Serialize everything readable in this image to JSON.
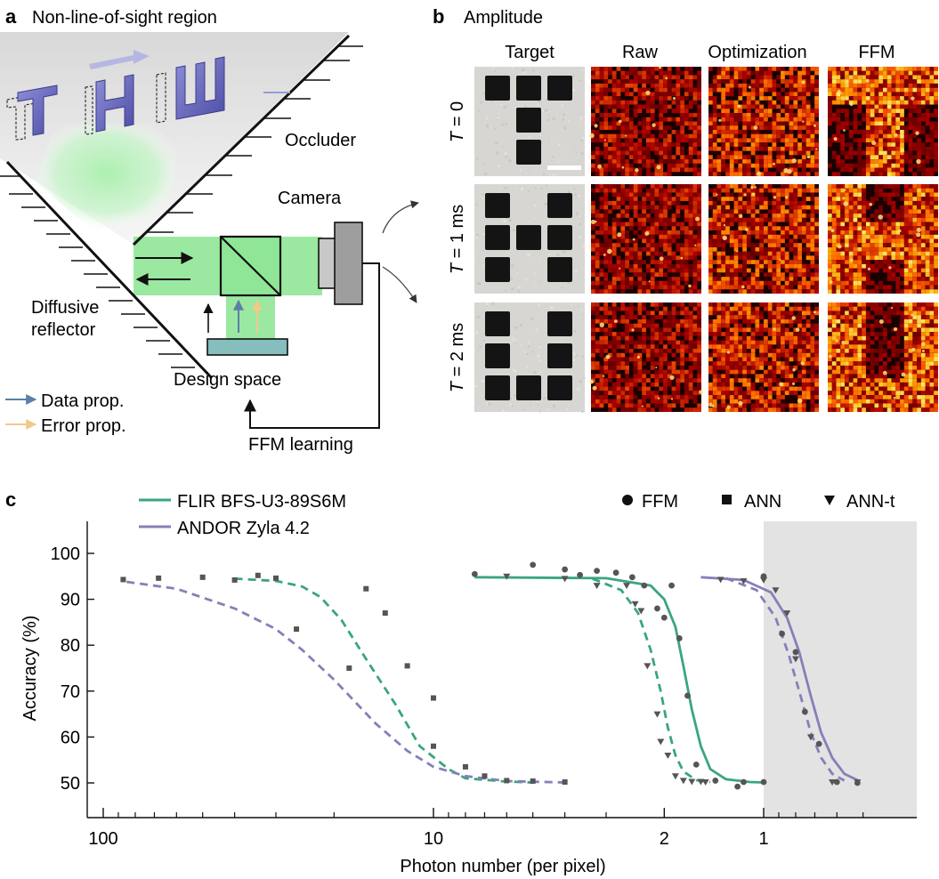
{
  "panel_a": {
    "letter": "a",
    "title": "Non-line-of-sight region",
    "target_text": "THU",
    "labels": {
      "occluder": "Occluder",
      "camera": "Camera",
      "diffusive_1": "Diffusive",
      "diffusive_2": "reflector",
      "design_space": "Design space",
      "ffm_learning": "FFM learning"
    },
    "legend": [
      {
        "label": "Data prop.",
        "color": "#5b7fa8"
      },
      {
        "label": "Error prop.",
        "color": "#f3c98b"
      }
    ],
    "colors": {
      "beam": "#8de394",
      "letters": "#6f6fc2",
      "design": "#86bdbd"
    }
  },
  "panel_b": {
    "letter": "b",
    "title": "Amplitude",
    "columns": [
      "Target",
      "Raw",
      "Optimization",
      "FFM"
    ],
    "rows": [
      {
        "prefix": "T",
        "rest": " = 0"
      },
      {
        "prefix": "T",
        "rest": " = 1 ms"
      },
      {
        "prefix": "T",
        "rest": " = 2 ms"
      }
    ],
    "target_patterns": [
      [
        [
          1,
          1,
          1
        ],
        [
          0,
          1,
          0
        ],
        [
          0,
          1,
          0
        ]
      ],
      [
        [
          1,
          0,
          1
        ],
        [
          1,
          1,
          1
        ],
        [
          1,
          0,
          1
        ]
      ],
      [
        [
          1,
          0,
          1
        ],
        [
          1,
          0,
          1
        ],
        [
          1,
          1,
          1
        ]
      ]
    ]
  },
  "panel_c": {
    "letter": "c",
    "legend_cameras": [
      {
        "name": "FLIR BFS-U3-89S6M",
        "color": "#3aa57f"
      },
      {
        "name": "ANDOR Zyla 4.2",
        "color": "#8580b8"
      }
    ],
    "legend_models": [
      {
        "symbol": "circle",
        "label": "FFM"
      },
      {
        "symbol": "square",
        "label": "ANN"
      },
      {
        "symbol": "triangle",
        "label": "ANN-t"
      }
    ]
  },
  "chart_data": {
    "type": "scatter",
    "xlabel": "Photon number (per pixel)",
    "ylabel": "Accuracy (%)",
    "x_scale": "log-reversed",
    "xlim": [
      100,
      0.4
    ],
    "ylim": [
      46,
      107
    ],
    "x_ticks": [
      {
        "value": 100,
        "label": "100"
      },
      {
        "value": 10,
        "label": "10"
      },
      {
        "value": 2,
        "label": "2"
      },
      {
        "value": 1,
        "label": "1"
      }
    ],
    "y_ticks": [
      {
        "value": 50,
        "label": "50"
      },
      {
        "value": 60,
        "label": "60"
      },
      {
        "value": 70,
        "label": "70"
      },
      {
        "value": 80,
        "label": "80"
      },
      {
        "value": 90,
        "label": "90"
      },
      {
        "value": 100,
        "label": "100"
      }
    ],
    "shaded_region": {
      "x_from": 1,
      "x_to": 0.4,
      "color": "#e3e3e3"
    },
    "fits": [
      {
        "model": "ANN",
        "camera": "FLIR BFS-U3-89S6M",
        "style": "dashed",
        "color": "#3aa57f",
        "x": [
          40,
          30,
          25,
          22,
          19,
          16,
          13,
          11,
          9,
          8,
          6,
          5
        ],
        "y": [
          94.5,
          94.0,
          92.8,
          90.5,
          85.5,
          77,
          67,
          58,
          53,
          51,
          50.3,
          50.1
        ]
      },
      {
        "model": "ANN",
        "camera": "ANDOR Zyla 4.2",
        "style": "dashed",
        "color": "#8580b8",
        "x": [
          85,
          60,
          40,
          30,
          25,
          20,
          15,
          12,
          10,
          8,
          6,
          4
        ],
        "y": [
          93.8,
          92.3,
          88,
          83.5,
          79,
          72.5,
          63,
          57,
          53.5,
          51.5,
          50.4,
          50.1
        ]
      },
      {
        "model": "FFM",
        "camera": "FLIR BFS-U3-89S6M",
        "style": "solid",
        "color": "#3aa57f",
        "x": [
          7.5,
          3,
          2.2,
          2.0,
          1.85,
          1.75,
          1.65,
          1.55,
          1.45,
          1.3,
          1.1,
          1.0
        ],
        "y": [
          94.8,
          94.6,
          93,
          90,
          84,
          75.5,
          66,
          58,
          53,
          50.8,
          50.2,
          50.1
        ]
      },
      {
        "model": "ANN-t",
        "camera": "FLIR BFS-U3-89S6M",
        "style": "dashed",
        "color": "#3aa57f",
        "x": [
          3.3,
          2.7,
          2.4,
          2.2,
          2.05,
          1.95,
          1.85,
          1.75,
          1.6,
          1.45
        ],
        "y": [
          94.5,
          92,
          87,
          79,
          70,
          62,
          56,
          52.5,
          50.6,
          50.2
        ]
      },
      {
        "model": "FFM",
        "camera": "ANDOR Zyla 4.2",
        "style": "solid",
        "color": "#8580b8",
        "x": [
          1.55,
          1.15,
          0.95,
          0.85,
          0.78,
          0.72,
          0.67,
          0.62,
          0.57,
          0.52
        ],
        "y": [
          94.8,
          94.2,
          91.5,
          86,
          78.5,
          69,
          61,
          55.5,
          52,
          50.6
        ]
      },
      {
        "model": "ANN-t",
        "camera": "ANDOR Zyla 4.2",
        "style": "dashed",
        "color": "#8580b8",
        "x": [
          1.3,
          1.05,
          0.92,
          0.84,
          0.77,
          0.72,
          0.67,
          0.62,
          0.57
        ],
        "y": [
          94.6,
          92,
          86,
          78,
          68.5,
          61,
          55.5,
          52,
          50.5
        ]
      }
    ],
    "points": [
      {
        "model": "ANN",
        "symbol": "square",
        "x": [
          87,
          68,
          50,
          40,
          34,
          30,
          26,
          18,
          16,
          14,
          12,
          10,
          10,
          8,
          7,
          6,
          5,
          4
        ],
        "y": [
          94.3,
          94.6,
          94.8,
          94.2,
          95.2,
          94.6,
          83.5,
          75,
          92.3,
          87,
          75.5,
          68.5,
          58,
          53.5,
          51.5,
          50.5,
          50.4,
          50.2
        ]
      },
      {
        "model": "FFM",
        "symbol": "circle",
        "x": [
          7.5,
          5,
          4,
          3.6,
          3.2,
          2.8,
          2.5,
          2.3,
          2.1,
          2.0,
          1.9,
          1.8,
          1.7,
          1.6,
          1.4,
          1.2,
          1.15,
          1.0,
          1.0,
          0.88,
          0.8,
          0.75,
          0.68,
          0.6,
          0.52
        ],
        "y": [
          95.5,
          97.5,
          96.5,
          95.3,
          96.2,
          95.8,
          94.8,
          93,
          88,
          86,
          93,
          81.5,
          69,
          54,
          50.5,
          49.2,
          50.2,
          50.2,
          95,
          82.5,
          78.5,
          65.5,
          58.5,
          50.2,
          50
        ]
      },
      {
        "model": "ANN-t",
        "symbol": "triangle",
        "x": [
          6,
          4,
          3.2,
          2.6,
          2.45,
          2.35,
          2.25,
          2.1,
          2.05,
          1.95,
          1.85,
          1.75,
          1.65,
          1.55,
          1.5,
          1.35,
          1.15,
          1.0,
          0.92,
          0.85,
          0.8,
          0.72,
          0.62,
          0.52
        ],
        "y": [
          95,
          94.5,
          93,
          93,
          89,
          87.5,
          75.5,
          65,
          59,
          56,
          51.5,
          50.5,
          50.3,
          50.3,
          50.2,
          94.3,
          94,
          94.2,
          92,
          87,
          77,
          60,
          50.2,
          50.2
        ]
      }
    ]
  }
}
